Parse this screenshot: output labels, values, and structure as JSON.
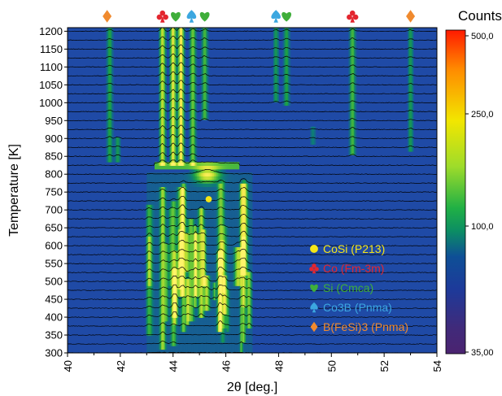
{
  "chart_data": {
    "type": "heatmap",
    "xlabel": "2θ [deg.]",
    "ylabel": "Temperature [K]",
    "xlim": [
      40,
      54
    ],
    "ylim": [
      300,
      1210
    ],
    "x_ticks": [
      40,
      42,
      44,
      46,
      48,
      50,
      52,
      54
    ],
    "y_ticks": [
      300,
      350,
      400,
      450,
      500,
      550,
      600,
      650,
      700,
      750,
      800,
      850,
      900,
      950,
      1000,
      1050,
      1100,
      1150,
      1200
    ],
    "temperatures": [
      300,
      325,
      350,
      375,
      400,
      425,
      450,
      475,
      500,
      525,
      550,
      575,
      600,
      625,
      650,
      675,
      700,
      725,
      750,
      775,
      800,
      825,
      850,
      875,
      900,
      925,
      950,
      975,
      1000,
      1025,
      1050,
      1075,
      1100,
      1125,
      1150,
      1175,
      1200
    ],
    "colorbar": {
      "title": "Counts",
      "labels": [
        "500,0",
        "250,0",
        "100,0",
        "35,00"
      ],
      "values": [
        500,
        250,
        100,
        35
      ],
      "colors": [
        "#ff1a00",
        "#ff8a00",
        "#f2e600",
        "#9fdc2a",
        "#20b045",
        "#0c8e63",
        "#0e4f96",
        "#1d3a9a",
        "#402a7a",
        "#4b2370"
      ]
    },
    "phases": [
      {
        "name": "CoSi (P213)",
        "symbol": "circle",
        "color": "#f5e616"
      },
      {
        "name": "Co (Fm-3m)",
        "symbol": "club",
        "color": "#e3262f"
      },
      {
        "name": "Si (Cmca)",
        "symbol": "heart",
        "color": "#3fae3a"
      },
      {
        "name": "Co3B (Pnma)",
        "symbol": "spade",
        "color": "#3ca7e0"
      },
      {
        "name": "B(FeSi)3 (Pnma)",
        "symbol": "diamond",
        "color": "#f08a2e"
      }
    ],
    "peak_markers": [
      {
        "x": 41.5,
        "phase": "B(FeSi)3 (Pnma)"
      },
      {
        "x": 43.6,
        "phase": "Co (Fm-3m)"
      },
      {
        "x": 44.1,
        "phase": "Si (Cmca)"
      },
      {
        "x": 44.7,
        "phase": "Co3B (Pnma)"
      },
      {
        "x": 45.2,
        "phase": "Si (Cmca)"
      },
      {
        "x": 47.9,
        "phase": "Co3B (Pnma)"
      },
      {
        "x": 48.3,
        "phase": "Si (Cmca)"
      },
      {
        "x": 50.8,
        "phase": "Co (Fm-3m)"
      },
      {
        "x": 53.0,
        "phase": "B(FeSi)3 (Pnma)"
      }
    ],
    "high_temp_peaks": [
      {
        "x": 41.6,
        "intensity": 0.35,
        "t_min": 830,
        "t_max": 1210
      },
      {
        "x": 41.9,
        "intensity": 0.3,
        "t_min": 830,
        "t_max": 900
      },
      {
        "x": 43.6,
        "intensity": 0.75,
        "t_min": 820,
        "t_max": 1210
      },
      {
        "x": 44.0,
        "intensity": 0.85,
        "t_min": 820,
        "t_max": 1210
      },
      {
        "x": 44.3,
        "intensity": 0.95,
        "t_min": 820,
        "t_max": 1210
      },
      {
        "x": 44.75,
        "intensity": 0.55,
        "t_min": 820,
        "t_max": 1210
      },
      {
        "x": 45.2,
        "intensity": 0.45,
        "t_min": 950,
        "t_max": 1210
      },
      {
        "x": 47.9,
        "intensity": 0.3,
        "t_min": 1000,
        "t_max": 1210
      },
      {
        "x": 48.3,
        "intensity": 0.35,
        "t_min": 990,
        "t_max": 1210
      },
      {
        "x": 49.3,
        "intensity": 0.2,
        "t_min": 880,
        "t_max": 930
      },
      {
        "x": 50.8,
        "intensity": 0.45,
        "t_min": 850,
        "t_max": 1210
      },
      {
        "x": 53.0,
        "intensity": 0.3,
        "t_min": 860,
        "t_max": 1210
      }
    ],
    "cosi_peak": {
      "x": 45.3,
      "t": 800,
      "intensity": 0.85
    },
    "cosi_marker": {
      "x": 45.35,
      "t": 730
    },
    "low_temp_region": {
      "x_min": 43.0,
      "x_max": 47.0,
      "t_min": 300,
      "t_max": 800,
      "intensity": 0.4
    }
  }
}
